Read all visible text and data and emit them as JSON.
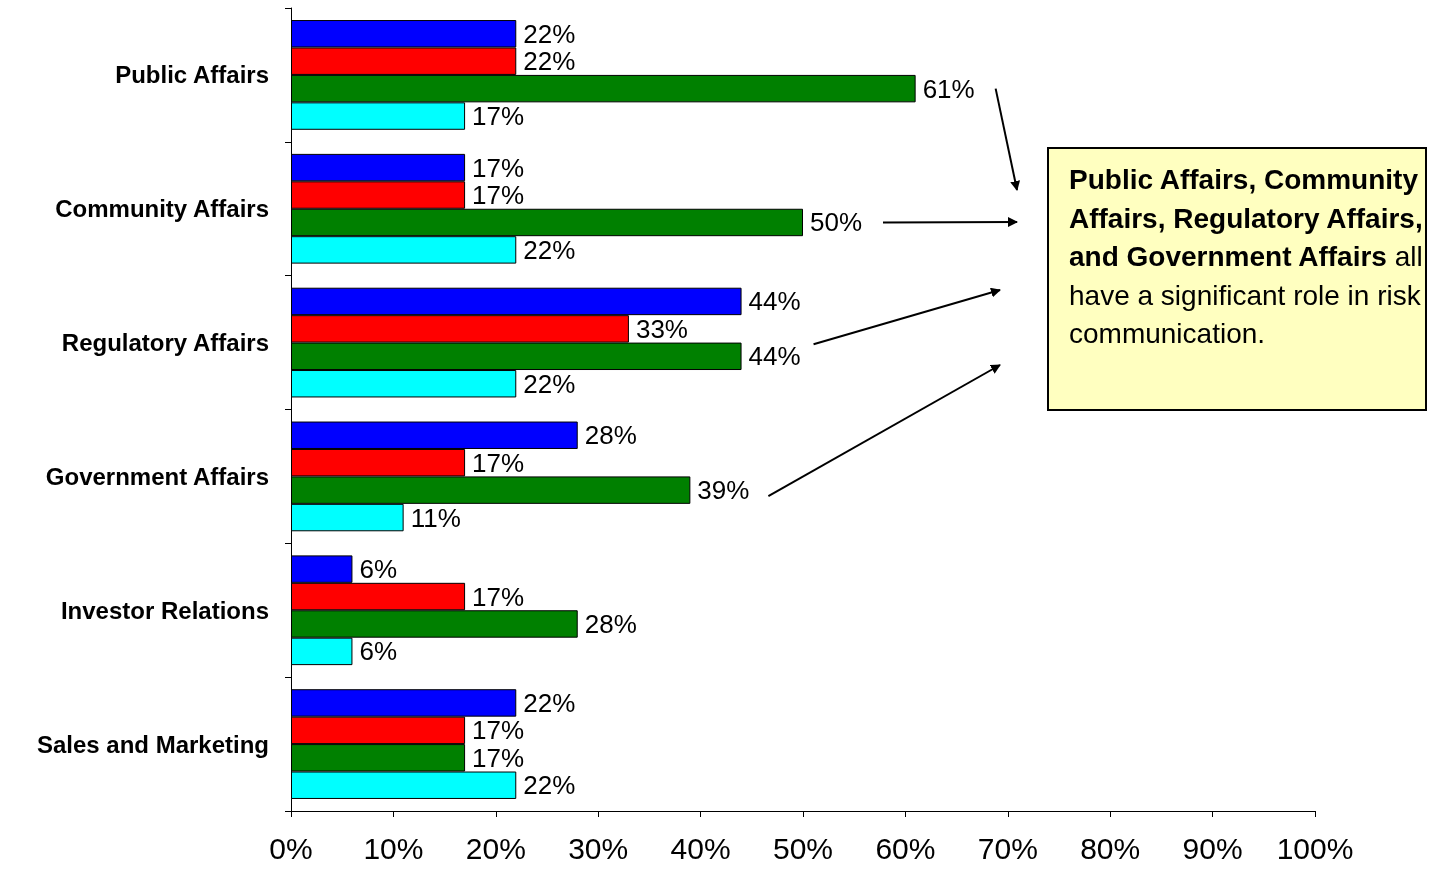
{
  "chart_data": {
    "type": "bar",
    "orientation": "horizontal",
    "categories": [
      "Public Affairs",
      "Community Affairs",
      "Regulatory Affairs",
      "Government Affairs",
      "Investor Relations",
      "Sales and Marketing"
    ],
    "series": [
      {
        "color": "#0000ff",
        "values": [
          22,
          17,
          44,
          28,
          6,
          22
        ],
        "value_labels": [
          "22%",
          "17%",
          "44%",
          "28%",
          "6%",
          "22%"
        ]
      },
      {
        "color": "#ff0000",
        "values": [
          22,
          17,
          33,
          17,
          17,
          17
        ],
        "value_labels": [
          "22%",
          "17%",
          "33%",
          "17%",
          "17%",
          "17%"
        ]
      },
      {
        "color": "#008000",
        "values": [
          61,
          50,
          44,
          39,
          28,
          17
        ],
        "value_labels": [
          "61%",
          "50%",
          "44%",
          "39%",
          "28%",
          "17%"
        ]
      },
      {
        "color": "#00ffff",
        "values": [
          17,
          22,
          22,
          11,
          6,
          22
        ],
        "value_labels": [
          "17%",
          "22%",
          "22%",
          "11%",
          "6%",
          "22%"
        ]
      }
    ],
    "xlim": [
      0,
      100
    ],
    "xticks": [
      {
        "value": 0,
        "label": "0%"
      },
      {
        "value": 10,
        "label": "10%"
      },
      {
        "value": 20,
        "label": "20%"
      },
      {
        "value": 30,
        "label": "30%"
      },
      {
        "value": 40,
        "label": "40%"
      },
      {
        "value": 50,
        "label": "50%"
      },
      {
        "value": 60,
        "label": "60%"
      },
      {
        "value": 70,
        "label": "70%"
      },
      {
        "value": 80,
        "label": "80%"
      },
      {
        "value": 90,
        "label": "90%"
      },
      {
        "value": 100,
        "label": "100%"
      }
    ],
    "grid": false,
    "annotations": [
      "Public Affairs, Community Affairs, Regulatory Affairs, and Government Affairs",
      "all have a significant role in risk communication."
    ]
  }
}
